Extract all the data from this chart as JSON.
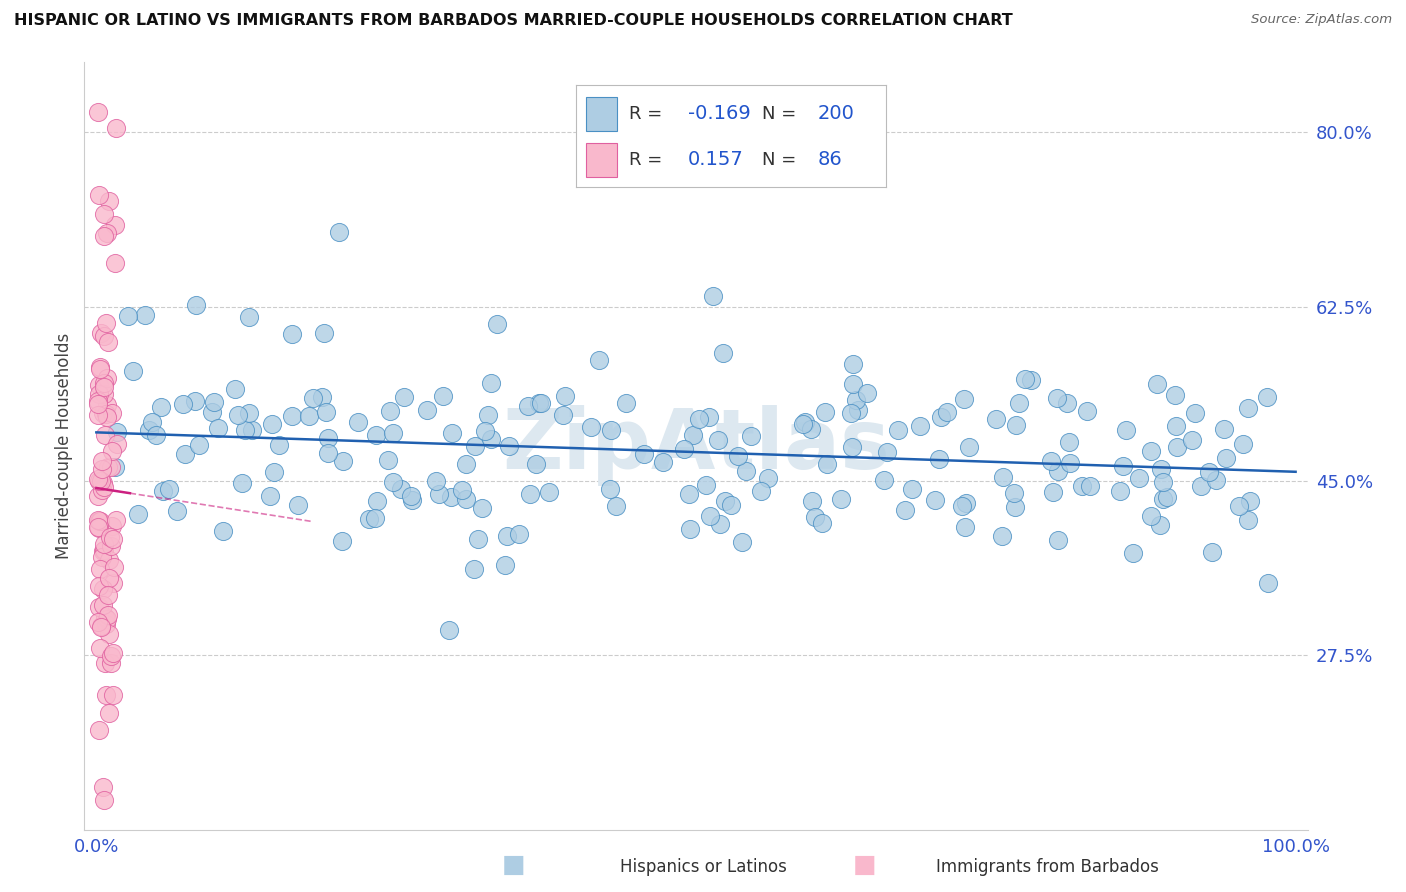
{
  "title": "HISPANIC OR LATINO VS IMMIGRANTS FROM BARBADOS MARRIED-COUPLE HOUSEHOLDS CORRELATION CHART",
  "source": "Source: ZipAtlas.com",
  "ylabel": "Married-couple Households",
  "ytick_vals": [
    0.275,
    0.45,
    0.625,
    0.8
  ],
  "ylim": [
    0.1,
    0.87
  ],
  "xlim": [
    -0.01,
    1.01
  ],
  "blue_R": -0.169,
  "blue_N": 200,
  "pink_R": 0.157,
  "pink_N": 86,
  "blue_fill": "#aecde3",
  "pink_fill": "#f9b8cc",
  "blue_edge": "#4a90c4",
  "pink_edge": "#e060a0",
  "blue_line_color": "#2060b0",
  "pink_line_color": "#cc2080",
  "bg_color": "#ffffff",
  "grid_color": "#cccccc",
  "axis_label_color": "#3355cc",
  "title_color": "#111111",
  "watermark": "ZipAtlas",
  "watermark_color": "#dde8f0",
  "legend_border": "#bbbbbb",
  "legend_text_dark": "#333333",
  "legend_text_blue": "#2255cc"
}
